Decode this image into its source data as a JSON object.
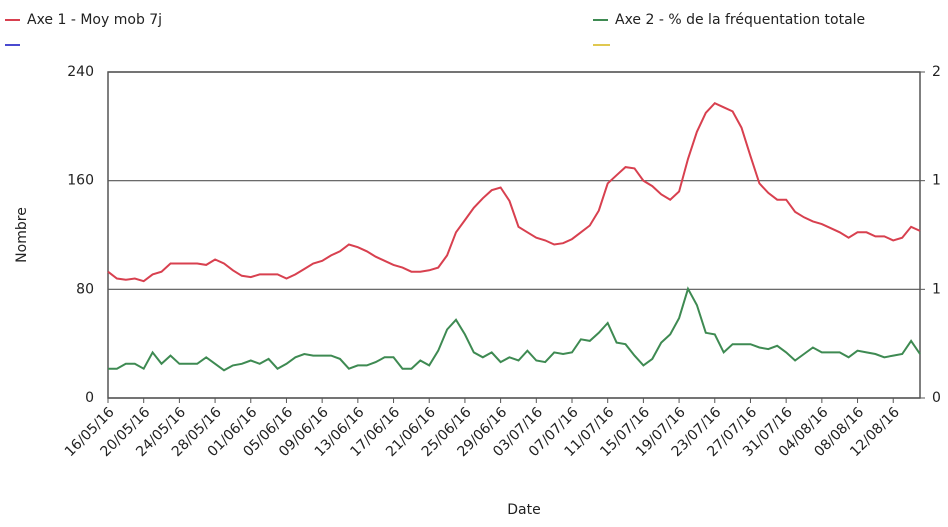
{
  "chart_data": {
    "type": "line",
    "x_label": "Date",
    "y_label": "Nombre",
    "categories": [
      "16/05/16",
      null,
      null,
      null,
      "20/05/16",
      null,
      null,
      null,
      "24/05/16",
      null,
      null,
      null,
      "28/05/16",
      null,
      null,
      null,
      "01/06/16",
      null,
      null,
      null,
      "05/06/16",
      null,
      null,
      null,
      "09/06/16",
      null,
      null,
      null,
      "13/06/16",
      null,
      null,
      null,
      "17/06/16",
      null,
      null,
      null,
      "21/06/16",
      null,
      null,
      null,
      "25/06/16",
      null,
      null,
      null,
      "29/06/16",
      null,
      null,
      null,
      "03/07/16",
      null,
      null,
      null,
      "07/07/16",
      null,
      null,
      null,
      "11/07/16",
      null,
      null,
      null,
      "15/07/16",
      null,
      null,
      null,
      "19/07/16",
      null,
      null,
      null,
      "23/07/16",
      null,
      null,
      null,
      "27/07/16",
      null,
      null,
      null,
      "31/07/16",
      null,
      null,
      null,
      "04/08/16",
      null,
      null,
      null,
      "08/08/16",
      null,
      null,
      null,
      "12/08/16",
      null,
      null,
      null
    ],
    "series": [
      {
        "name": "Axe 1 - Moy mob 7j",
        "color": "#d8404f",
        "axis": "y",
        "values": [
          93,
          88,
          87,
          88,
          86,
          91,
          93,
          99,
          99,
          99,
          99,
          98,
          102,
          99,
          94,
          90,
          89,
          91,
          91,
          91,
          88,
          91,
          95,
          99,
          101,
          105,
          108,
          113,
          111,
          108,
          104,
          101,
          98,
          96,
          93,
          93,
          94,
          96,
          105,
          122,
          131,
          140,
          147,
          153,
          155,
          145,
          126,
          122,
          118,
          116,
          113,
          114,
          117,
          122,
          127,
          138,
          158,
          164,
          170,
          169,
          160,
          156,
          150,
          146,
          152,
          176,
          196,
          210,
          217,
          214,
          211,
          199,
          178,
          158,
          151,
          146,
          146,
          137,
          133,
          130,
          128,
          125,
          122,
          118,
          122,
          122,
          119,
          119,
          116,
          118,
          126,
          123
        ]
      },
      {
        "name": "Axe 2 - % de la fréquentation totale",
        "color": "#3e8a52",
        "axis": "y2",
        "values": [
          0.18,
          0.18,
          0.21,
          0.21,
          0.18,
          0.28,
          0.21,
          0.26,
          0.21,
          0.21,
          0.21,
          0.25,
          0.21,
          0.17,
          0.2,
          0.21,
          0.23,
          0.21,
          0.24,
          0.18,
          0.21,
          0.25,
          0.27,
          0.26,
          0.26,
          0.26,
          0.24,
          0.18,
          0.2,
          0.2,
          0.22,
          0.25,
          0.25,
          0.18,
          0.18,
          0.23,
          0.2,
          0.29,
          0.42,
          0.48,
          0.39,
          0.28,
          0.25,
          0.28,
          0.22,
          0.25,
          0.23,
          0.29,
          0.23,
          0.22,
          0.28,
          0.27,
          0.28,
          0.36,
          0.35,
          0.4,
          0.46,
          0.34,
          0.33,
          0.26,
          0.2,
          0.24,
          0.34,
          0.39,
          0.49,
          0.67,
          0.57,
          0.4,
          0.39,
          0.28,
          0.33,
          0.33,
          0.33,
          0.31,
          0.3,
          0.32,
          0.28,
          0.23,
          0.27,
          0.31,
          0.28,
          0.28,
          0.28,
          0.25,
          0.29,
          0.28,
          0.27,
          0.25,
          0.26,
          0.27,
          0.35,
          0.27
        ]
      }
    ],
    "ylim": [
      0,
      240
    ],
    "yticks": [
      0,
      80,
      160,
      240
    ],
    "y2lim": [
      0,
      2
    ],
    "y2ticks": [
      0,
      {
        "value": 0.6667,
        "label": "1"
      },
      {
        "value": 1.3333,
        "label": "1"
      },
      2
    ],
    "grid": true
  }
}
